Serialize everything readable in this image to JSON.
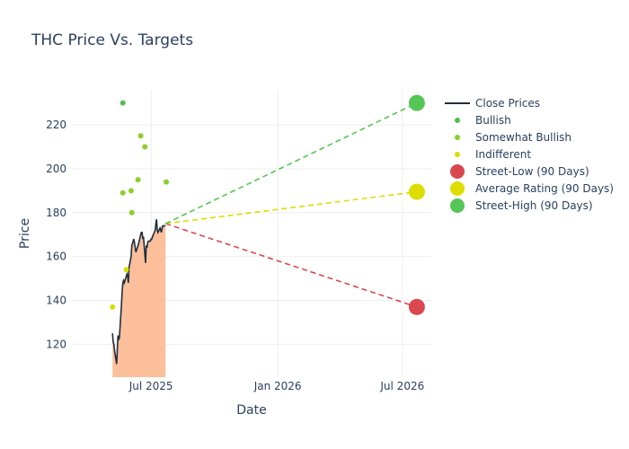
{
  "chart_data": {
    "type": "line",
    "title": "THC Price Vs. Targets",
    "xlabel": "Date",
    "ylabel": "Price",
    "x_range": [
      "2025-03-08",
      "2026-08-12"
    ],
    "ylim": [
      105,
      236
    ],
    "x_ticks": [
      {
        "date": "2025-07-01",
        "label": "Jul 2025"
      },
      {
        "date": "2026-01-01",
        "label": "Jan 2026"
      },
      {
        "date": "2026-07-01",
        "label": "Jul 2026"
      }
    ],
    "y_ticks": [
      120,
      140,
      160,
      180,
      200,
      220
    ],
    "grid": true,
    "legend_position": "right",
    "series": [
      {
        "name": "Close Prices",
        "kind": "line_area",
        "color": "#1f2d3d",
        "fill_color": "#fbbf9b",
        "points": [
          [
            "2025-05-06",
            125
          ],
          [
            "2025-05-07",
            121
          ],
          [
            "2025-05-08",
            120
          ],
          [
            "2025-05-09",
            117
          ],
          [
            "2025-05-12",
            111
          ],
          [
            "2025-05-13",
            118
          ],
          [
            "2025-05-14",
            124
          ],
          [
            "2025-05-15",
            122
          ],
          [
            "2025-05-16",
            123
          ],
          [
            "2025-05-19",
            138
          ],
          [
            "2025-05-20",
            144
          ],
          [
            "2025-05-21",
            148
          ],
          [
            "2025-05-22",
            149
          ],
          [
            "2025-05-23",
            148
          ],
          [
            "2025-05-27",
            152
          ],
          [
            "2025-05-28",
            151
          ],
          [
            "2025-05-29",
            148
          ],
          [
            "2025-05-30",
            155
          ],
          [
            "2025-06-02",
            160
          ],
          [
            "2025-06-03",
            165
          ],
          [
            "2025-06-04",
            166
          ],
          [
            "2025-06-05",
            167
          ],
          [
            "2025-06-06",
            168
          ],
          [
            "2025-06-09",
            162
          ],
          [
            "2025-06-10",
            163
          ],
          [
            "2025-06-11",
            164
          ],
          [
            "2025-06-12",
            165
          ],
          [
            "2025-06-13",
            166
          ],
          [
            "2025-06-16",
            170
          ],
          [
            "2025-06-17",
            171
          ],
          [
            "2025-06-18",
            171
          ],
          [
            "2025-06-19",
            168
          ],
          [
            "2025-06-20",
            169
          ],
          [
            "2025-06-23",
            157
          ],
          [
            "2025-06-24",
            165
          ],
          [
            "2025-06-25",
            164
          ],
          [
            "2025-06-26",
            166
          ],
          [
            "2025-06-27",
            167
          ],
          [
            "2025-06-30",
            167
          ],
          [
            "2025-07-01",
            168
          ],
          [
            "2025-07-02",
            168
          ],
          [
            "2025-07-03",
            169
          ],
          [
            "2025-07-07",
            172
          ],
          [
            "2025-07-08",
            175
          ],
          [
            "2025-07-09",
            177
          ],
          [
            "2025-07-10",
            172
          ],
          [
            "2025-07-11",
            171
          ],
          [
            "2025-07-14",
            173
          ],
          [
            "2025-07-15",
            172
          ],
          [
            "2025-07-16",
            171
          ],
          [
            "2025-07-17",
            173
          ],
          [
            "2025-07-18",
            174
          ],
          [
            "2025-07-21",
            174
          ],
          [
            "2025-07-22",
            174
          ]
        ]
      },
      {
        "name": "Bullish",
        "kind": "scatter",
        "color": "#4fbf4f",
        "points": [
          [
            "2025-05-21",
            230
          ]
        ]
      },
      {
        "name": "Somewhat Bullish",
        "kind": "scatter",
        "color": "#8ccf2a",
        "points": [
          [
            "2025-06-16",
            215
          ],
          [
            "2025-06-22",
            210
          ],
          [
            "2025-06-12",
            195
          ],
          [
            "2025-05-21",
            189
          ],
          [
            "2025-06-02",
            190
          ],
          [
            "2025-06-03",
            180
          ],
          [
            "2025-07-23",
            194
          ]
        ]
      },
      {
        "name": "Indifferent",
        "kind": "scatter",
        "color": "#d9de00",
        "points": [
          [
            "2025-05-06",
            137
          ],
          [
            "2025-05-26",
            154
          ]
        ]
      },
      {
        "name": "Street-Low (90 Days)",
        "kind": "target",
        "color": "#d9474f",
        "from": [
          "2025-07-22",
          175
        ],
        "to": [
          "2026-07-22",
          137
        ]
      },
      {
        "name": "Average Rating (90 Days)",
        "kind": "target",
        "color": "#dddd00",
        "from": [
          "2025-07-22",
          175
        ],
        "to": [
          "2026-07-22",
          189.5
        ]
      },
      {
        "name": "Street-High (90 Days)",
        "kind": "target",
        "color": "#55c555",
        "from": [
          "2025-07-22",
          175
        ],
        "to": [
          "2026-07-22",
          230
        ]
      }
    ]
  }
}
